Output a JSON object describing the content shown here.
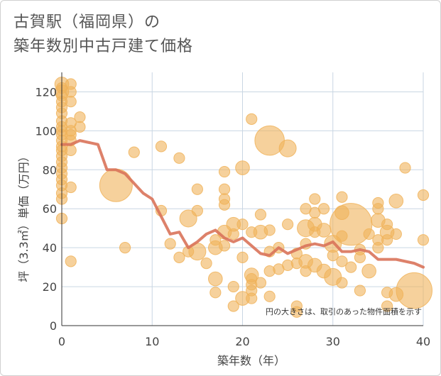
{
  "title": {
    "line1": "古賀駅（福岡県）の",
    "line2": "築年数別中古戸建て価格"
  },
  "chart_data": {
    "type": "scatter",
    "title": "古賀駅（福岡県）の築年数別中古戸建て価格",
    "xlabel": "築年数（年）",
    "ylabel": "坪（3.3㎡）単価（万円）",
    "xlim": [
      0,
      40
    ],
    "ylim": [
      0,
      130
    ],
    "xticks": [
      0,
      10,
      20,
      30,
      40
    ],
    "yticks": [
      0,
      20,
      40,
      60,
      80,
      100,
      120
    ],
    "grid": true,
    "note": "円の大きさは、取引のあった物件面積を示す",
    "colors": {
      "bubble": "#f0b35a",
      "line": "#d9735a"
    },
    "trend_line": {
      "x": [
        0,
        1,
        2,
        3,
        4,
        5,
        6,
        7,
        8,
        9,
        10,
        11,
        12,
        13,
        14,
        15,
        16,
        17,
        18,
        19,
        20,
        21,
        22,
        23,
        24,
        25,
        26,
        27,
        28,
        29,
        30,
        31,
        32,
        33,
        34,
        35,
        36,
        37,
        38,
        39,
        40
      ],
      "y": [
        93,
        93,
        95,
        94,
        93,
        80,
        80,
        78,
        73,
        68,
        65,
        56,
        47,
        48,
        40,
        43,
        47,
        49,
        45,
        43,
        45,
        41,
        37,
        36,
        40,
        37,
        39,
        41,
        42,
        41,
        43,
        38,
        38,
        39,
        38,
        34,
        34,
        34,
        33,
        32,
        30
      ]
    },
    "points": [
      {
        "x": 0,
        "y": 124,
        "size": 4
      },
      {
        "x": 0,
        "y": 122,
        "size": 3
      },
      {
        "x": 0,
        "y": 120,
        "size": 4
      },
      {
        "x": 0,
        "y": 118,
        "size": 3
      },
      {
        "x": 0,
        "y": 115,
        "size": 3
      },
      {
        "x": 0,
        "y": 112,
        "size": 3
      },
      {
        "x": 0,
        "y": 109,
        "size": 3
      },
      {
        "x": 0,
        "y": 105,
        "size": 3
      },
      {
        "x": 0,
        "y": 102,
        "size": 3
      },
      {
        "x": 0,
        "y": 100,
        "size": 3
      },
      {
        "x": 0,
        "y": 98,
        "size": 3
      },
      {
        "x": 0,
        "y": 95,
        "size": 3
      },
      {
        "x": 0,
        "y": 92,
        "size": 3
      },
      {
        "x": 0,
        "y": 90,
        "size": 3
      },
      {
        "x": 0,
        "y": 87,
        "size": 3
      },
      {
        "x": 0,
        "y": 84,
        "size": 3
      },
      {
        "x": 0,
        "y": 81,
        "size": 3
      },
      {
        "x": 0,
        "y": 78,
        "size": 3
      },
      {
        "x": 0,
        "y": 75,
        "size": 3
      },
      {
        "x": 0,
        "y": 72,
        "size": 3
      },
      {
        "x": 0,
        "y": 68,
        "size": 3
      },
      {
        "x": 0,
        "y": 65,
        "size": 3
      },
      {
        "x": 0,
        "y": 55,
        "size": 3
      },
      {
        "x": 1,
        "y": 124,
        "size": 3
      },
      {
        "x": 1,
        "y": 120,
        "size": 3
      },
      {
        "x": 1,
        "y": 115,
        "size": 3
      },
      {
        "x": 1,
        "y": 104,
        "size": 3
      },
      {
        "x": 1,
        "y": 100,
        "size": 3
      },
      {
        "x": 1,
        "y": 98,
        "size": 3
      },
      {
        "x": 1,
        "y": 95,
        "size": 3
      },
      {
        "x": 1,
        "y": 90,
        "size": 3
      },
      {
        "x": 1,
        "y": 71,
        "size": 3
      },
      {
        "x": 1,
        "y": 33,
        "size": 3
      },
      {
        "x": 2,
        "y": 107,
        "size": 3
      },
      {
        "x": 2,
        "y": 102,
        "size": 3
      },
      {
        "x": 6,
        "y": 72,
        "size": 10
      },
      {
        "x": 7,
        "y": 40,
        "size": 3
      },
      {
        "x": 8,
        "y": 89,
        "size": 3
      },
      {
        "x": 11,
        "y": 92,
        "size": 3
      },
      {
        "x": 11,
        "y": 59,
        "size": 3
      },
      {
        "x": 12,
        "y": 42,
        "size": 3
      },
      {
        "x": 13,
        "y": 86,
        "size": 3
      },
      {
        "x": 13,
        "y": 35,
        "size": 3
      },
      {
        "x": 14,
        "y": 55,
        "size": 5
      },
      {
        "x": 14,
        "y": 38,
        "size": 3
      },
      {
        "x": 15,
        "y": 70,
        "size": 3
      },
      {
        "x": 15,
        "y": 59,
        "size": 3
      },
      {
        "x": 15,
        "y": 38,
        "size": 5
      },
      {
        "x": 16,
        "y": 32,
        "size": 3
      },
      {
        "x": 17,
        "y": 44,
        "size": 3
      },
      {
        "x": 17,
        "y": 40,
        "size": 4
      },
      {
        "x": 17,
        "y": 24,
        "size": 4
      },
      {
        "x": 17,
        "y": 17,
        "size": 3
      },
      {
        "x": 18,
        "y": 79,
        "size": 3
      },
      {
        "x": 18,
        "y": 70,
        "size": 3
      },
      {
        "x": 18,
        "y": 65,
        "size": 3
      },
      {
        "x": 18,
        "y": 62,
        "size": 3
      },
      {
        "x": 18,
        "y": 48,
        "size": 4
      },
      {
        "x": 18,
        "y": 41,
        "size": 3
      },
      {
        "x": 19,
        "y": 52,
        "size": 4
      },
      {
        "x": 19,
        "y": 47,
        "size": 3
      },
      {
        "x": 19,
        "y": 20,
        "size": 3
      },
      {
        "x": 19,
        "y": 10,
        "size": 3
      },
      {
        "x": 20,
        "y": 81,
        "size": 4
      },
      {
        "x": 20,
        "y": 52,
        "size": 3
      },
      {
        "x": 20,
        "y": 35,
        "size": 3
      },
      {
        "x": 20,
        "y": 14,
        "size": 4
      },
      {
        "x": 21,
        "y": 106,
        "size": 3
      },
      {
        "x": 21,
        "y": 48,
        "size": 3
      },
      {
        "x": 21,
        "y": 26,
        "size": 4
      },
      {
        "x": 21,
        "y": 24,
        "size": 3
      },
      {
        "x": 21,
        "y": 21,
        "size": 3
      },
      {
        "x": 21,
        "y": 18,
        "size": 3
      },
      {
        "x": 21,
        "y": 14,
        "size": 3
      },
      {
        "x": 22,
        "y": 57,
        "size": 3
      },
      {
        "x": 22,
        "y": 48,
        "size": 4
      },
      {
        "x": 22,
        "y": 22,
        "size": 3
      },
      {
        "x": 23,
        "y": 95,
        "size": 9
      },
      {
        "x": 23,
        "y": 49,
        "size": 3
      },
      {
        "x": 23,
        "y": 38,
        "size": 3
      },
      {
        "x": 23,
        "y": 28,
        "size": 3
      },
      {
        "x": 23,
        "y": 15,
        "size": 3
      },
      {
        "x": 24,
        "y": 40,
        "size": 3
      },
      {
        "x": 24,
        "y": 29,
        "size": 3
      },
      {
        "x": 25,
        "y": 91,
        "size": 5
      },
      {
        "x": 25,
        "y": 52,
        "size": 3
      },
      {
        "x": 25,
        "y": 31,
        "size": 3
      },
      {
        "x": 26,
        "y": 37,
        "size": 3
      },
      {
        "x": 26,
        "y": 32,
        "size": 3
      },
      {
        "x": 26,
        "y": 10,
        "size": 3
      },
      {
        "x": 26,
        "y": 7,
        "size": 3
      },
      {
        "x": 27,
        "y": 60,
        "size": 3
      },
      {
        "x": 27,
        "y": 50,
        "size": 5
      },
      {
        "x": 27,
        "y": 42,
        "size": 3
      },
      {
        "x": 27,
        "y": 33,
        "size": 4
      },
      {
        "x": 27,
        "y": 28,
        "size": 3
      },
      {
        "x": 28,
        "y": 65,
        "size": 3
      },
      {
        "x": 28,
        "y": 58,
        "size": 3
      },
      {
        "x": 28,
        "y": 52,
        "size": 4
      },
      {
        "x": 28,
        "y": 48,
        "size": 3
      },
      {
        "x": 28,
        "y": 31,
        "size": 4
      },
      {
        "x": 29,
        "y": 60,
        "size": 3
      },
      {
        "x": 29,
        "y": 49,
        "size": 4
      },
      {
        "x": 29,
        "y": 28,
        "size": 4
      },
      {
        "x": 30,
        "y": 42,
        "size": 5
      },
      {
        "x": 30,
        "y": 36,
        "size": 3
      },
      {
        "x": 30,
        "y": 25,
        "size": 5
      },
      {
        "x": 31,
        "y": 66,
        "size": 3
      },
      {
        "x": 31,
        "y": 58,
        "size": 4
      },
      {
        "x": 31,
        "y": 46,
        "size": 3
      },
      {
        "x": 31,
        "y": 33,
        "size": 3
      },
      {
        "x": 31,
        "y": 22,
        "size": 3
      },
      {
        "x": 32,
        "y": 52,
        "size": 13
      },
      {
        "x": 32,
        "y": 30,
        "size": 3
      },
      {
        "x": 33,
        "y": 39,
        "size": 3
      },
      {
        "x": 33,
        "y": 35,
        "size": 3
      },
      {
        "x": 33,
        "y": 18,
        "size": 3
      },
      {
        "x": 34,
        "y": 47,
        "size": 3
      },
      {
        "x": 34,
        "y": 28,
        "size": 4
      },
      {
        "x": 35,
        "y": 63,
        "size": 3
      },
      {
        "x": 35,
        "y": 60,
        "size": 3
      },
      {
        "x": 35,
        "y": 54,
        "size": 4
      },
      {
        "x": 35,
        "y": 44,
        "size": 3
      },
      {
        "x": 35,
        "y": 40,
        "size": 3
      },
      {
        "x": 36,
        "y": 52,
        "size": 3
      },
      {
        "x": 36,
        "y": 48,
        "size": 4
      },
      {
        "x": 36,
        "y": 44,
        "size": 3
      },
      {
        "x": 36,
        "y": 17,
        "size": 3
      },
      {
        "x": 36,
        "y": 10,
        "size": 3
      },
      {
        "x": 37,
        "y": 64,
        "size": 4
      },
      {
        "x": 37,
        "y": 47,
        "size": 3
      },
      {
        "x": 37,
        "y": 16,
        "size": 4
      },
      {
        "x": 38,
        "y": 81,
        "size": 3
      },
      {
        "x": 39,
        "y": 18,
        "size": 11
      },
      {
        "x": 40,
        "y": 67,
        "size": 3
      },
      {
        "x": 40,
        "y": 44,
        "size": 3
      }
    ]
  }
}
